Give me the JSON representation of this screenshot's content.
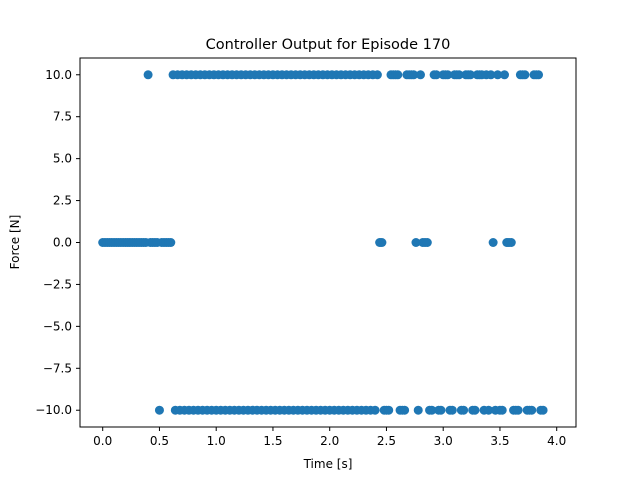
{
  "chart_data": {
    "type": "scatter",
    "title": "Controller Output for Episode 170",
    "xlabel": "Time [s]",
    "ylabel": "Force [N]",
    "xlim": [
      -0.2,
      4.17
    ],
    "ylim": [
      -11.0,
      11.0
    ],
    "xticks": [
      0.0,
      0.5,
      1.0,
      1.5,
      2.0,
      2.5,
      3.0,
      3.5,
      4.0
    ],
    "xtick_labels": [
      "0.0",
      "0.5",
      "1.0",
      "1.5",
      "2.0",
      "2.5",
      "3.0",
      "3.5",
      "4.0"
    ],
    "yticks": [
      -10.0,
      -7.5,
      -5.0,
      -2.5,
      0.0,
      2.5,
      5.0,
      7.5,
      10.0
    ],
    "ytick_labels": [
      "−10.0",
      "−7.5",
      "−5.0",
      "−2.5",
      "0.0",
      "2.5",
      "5.0",
      "7.5",
      "10.0"
    ],
    "marker_color": "#1f77b4",
    "grid": false,
    "legend": "none",
    "series": [
      {
        "x_start": 0.0,
        "x_step": 0.02,
        "y": [
          0,
          0,
          0,
          0,
          0,
          0,
          0,
          0,
          0,
          0,
          0,
          0,
          0,
          0,
          0,
          0,
          0,
          0,
          0,
          0,
          10,
          0,
          0,
          0,
          0,
          -10,
          0,
          0,
          0,
          0,
          0,
          10,
          -10,
          10,
          -10,
          10,
          -10,
          10,
          -10,
          10,
          -10,
          10,
          -10,
          10,
          -10,
          10,
          -10,
          10,
          -10,
          10,
          -10,
          10,
          -10,
          10,
          -10,
          10,
          -10,
          10,
          -10,
          10,
          -10,
          10,
          -10,
          10,
          -10,
          10,
          -10,
          10,
          -10,
          10,
          -10,
          10,
          -10,
          10,
          -10,
          10,
          -10,
          10,
          -10,
          10,
          -10,
          10,
          -10,
          10,
          -10,
          10,
          -10,
          10,
          -10,
          10,
          -10,
          10,
          -10,
          10,
          -10,
          10,
          -10,
          10,
          -10,
          10,
          -10,
          10,
          -10,
          10,
          -10,
          10,
          -10,
          10,
          -10,
          10,
          -10,
          10,
          -10,
          10,
          -10,
          10,
          -10,
          10,
          -10,
          10,
          -10,
          10,
          0,
          0,
          -10,
          -10,
          -10,
          10,
          10,
          10,
          10,
          -10,
          -10,
          -10,
          10,
          10,
          10,
          10,
          0,
          -10,
          10,
          0,
          0,
          0,
          -10,
          -10,
          10,
          10,
          -10,
          -10,
          10,
          10,
          10,
          -10,
          -10,
          10,
          10,
          10,
          -10,
          -10,
          10,
          10,
          10,
          -10,
          -10,
          10,
          10,
          10,
          -10,
          10,
          -10,
          10,
          0,
          -10,
          10,
          -10,
          -10,
          10,
          0,
          0,
          0,
          -10,
          -10,
          -10,
          10,
          10,
          10,
          -10,
          -10,
          -10,
          10,
          10,
          10,
          -10,
          -10
        ]
      }
    ]
  }
}
